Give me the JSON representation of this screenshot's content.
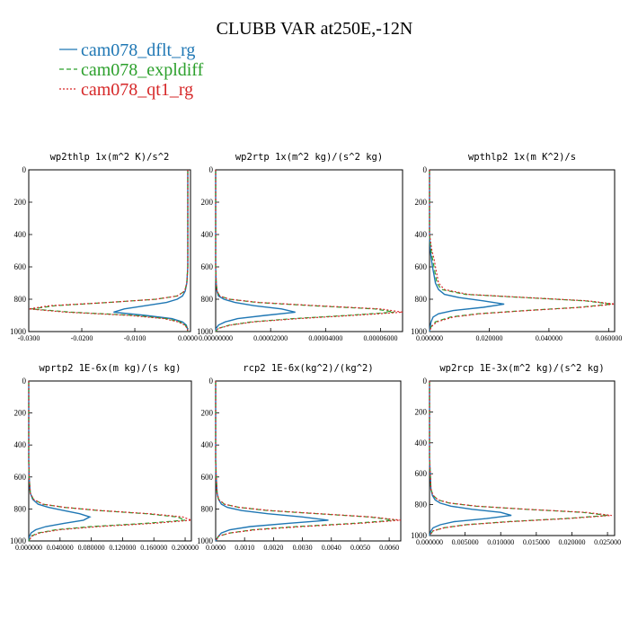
{
  "title": "CLUBB VAR at250E,-12N",
  "legend": [
    {
      "label": "cam078_dflt_rg",
      "color": "#1f77b4",
      "dash": "solid"
    },
    {
      "label": "cam078_expldiff",
      "color": "#2ca02c",
      "dash": "dashed"
    },
    {
      "label": "cam078_qt1_rg",
      "color": "#d62728",
      "dash": "dotted"
    }
  ],
  "chart_data": [
    {
      "type": "line",
      "title": "wp2thlp  1x(m^2 K)/s^2",
      "ylim": [
        1000,
        0
      ],
      "yticks": [
        "0",
        "200",
        "400",
        "600",
        "800",
        "1000"
      ],
      "xlim": [
        -0.03,
        0.0005
      ],
      "xticks": [
        {
          "v": -0.03,
          "label": "-0.0300"
        },
        {
          "v": -0.02,
          "label": "-0.0200"
        },
        {
          "v": -0.01,
          "label": "-0.0100"
        },
        {
          "v": 0.0,
          "label": "0.0000"
        }
      ],
      "y": [
        0,
        100,
        200,
        300,
        400,
        500,
        600,
        700,
        750,
        780,
        800,
        820,
        840,
        860,
        880,
        900,
        920,
        940,
        960,
        980,
        1000
      ],
      "series": [
        {
          "name": "cam078_dflt_rg",
          "values": [
            0,
            0,
            0,
            0,
            0,
            0,
            0,
            -0.0002,
            -0.0005,
            -0.001,
            -0.002,
            -0.004,
            -0.008,
            -0.012,
            -0.014,
            -0.008,
            -0.003,
            -0.001,
            -0.0003,
            -0.0001,
            0
          ]
        },
        {
          "name": "cam078_expldiff",
          "values": [
            0,
            0,
            0,
            0,
            0,
            0,
            0,
            -0.0002,
            -0.0006,
            -0.002,
            -0.006,
            -0.015,
            -0.025,
            -0.0295,
            -0.022,
            -0.01,
            -0.004,
            -0.0015,
            -0.0005,
            -0.0001,
            0
          ]
        },
        {
          "name": "cam078_qt1_rg",
          "values": [
            0,
            0,
            0,
            0,
            0,
            0,
            0,
            -0.0002,
            -0.0006,
            -0.002,
            -0.006,
            -0.015,
            -0.026,
            -0.03,
            -0.023,
            -0.011,
            -0.0045,
            -0.0018,
            -0.0006,
            -0.0001,
            0
          ]
        }
      ]
    },
    {
      "type": "line",
      "title": "wp2rtp  1x(m^2 kg)/(s^2 kg)",
      "ylim": [
        1000,
        0
      ],
      "yticks": [
        "0",
        "200",
        "400",
        "600",
        "800",
        "1000"
      ],
      "xlim": [
        0,
        6.8e-05
      ],
      "xticks": [
        {
          "v": 0,
          "label": "0.00000000"
        },
        {
          "v": 2e-05,
          "label": "0.00002000"
        },
        {
          "v": 4e-05,
          "label": "0.00004000"
        },
        {
          "v": 6e-05,
          "label": "0.00006000"
        }
      ],
      "y": [
        0,
        100,
        200,
        300,
        400,
        500,
        600,
        700,
        750,
        780,
        800,
        820,
        840,
        860,
        880,
        900,
        920,
        940,
        960,
        980,
        1000
      ],
      "series": [
        {
          "name": "cam078_dflt_rg",
          "values": [
            0,
            0,
            0,
            0,
            0,
            0,
            0,
            2e-07,
            5e-07,
            1e-06,
            3e-06,
            7e-06,
            1.4e-05,
            2.4e-05,
            2.9e-05,
            1.8e-05,
            8e-06,
            3.5e-06,
            1e-06,
            2e-07,
            0
          ]
        },
        {
          "name": "cam078_expldiff",
          "values": [
            0,
            0,
            0,
            0,
            0,
            0,
            0,
            2e-07,
            5e-07,
            1.5e-06,
            5e-06,
            1.5e-05,
            3.5e-05,
            5.8e-05,
            6.5e-05,
            4.8e-05,
            2.8e-05,
            1.3e-05,
            5e-06,
            1e-06,
            0
          ]
        },
        {
          "name": "cam078_qt1_rg",
          "values": [
            0,
            0,
            0,
            0,
            0,
            0,
            0,
            2e-07,
            5e-07,
            1.5e-06,
            5e-06,
            1.6e-05,
            3.7e-05,
            6e-05,
            6.8e-05,
            5e-05,
            3e-05,
            1.4e-05,
            5.5e-06,
            1e-06,
            0
          ]
        }
      ]
    },
    {
      "type": "line",
      "title": "wpthlp2  1x(m K^2)/s",
      "ylim": [
        1000,
        0
      ],
      "yticks": [
        "0",
        "200",
        "400",
        "600",
        "800",
        "1000"
      ],
      "xlim": [
        0,
        0.062
      ],
      "xticks": [
        {
          "v": 0,
          "label": "0.000000"
        },
        {
          "v": 0.02,
          "label": "0.020000"
        },
        {
          "v": 0.04,
          "label": "0.040000"
        },
        {
          "v": 0.06,
          "label": "0.060000"
        }
      ],
      "y": [
        0,
        100,
        200,
        300,
        400,
        500,
        550,
        600,
        650,
        700,
        740,
        770,
        790,
        810,
        830,
        850,
        870,
        890,
        910,
        940,
        970,
        1000
      ],
      "series": [
        {
          "name": "cam078_dflt_rg",
          "values": [
            0,
            0,
            0,
            0,
            0,
            0.0003,
            0.0006,
            0.001,
            0.0015,
            0.002,
            0.003,
            0.005,
            0.01,
            0.018,
            0.025,
            0.018,
            0.008,
            0.003,
            0.0012,
            0.0005,
            0.0002,
            0
          ]
        },
        {
          "name": "cam078_expldiff",
          "values": [
            0,
            0,
            0,
            0,
            0,
            0.0005,
            0.001,
            0.0015,
            0.002,
            0.0025,
            0.004,
            0.012,
            0.032,
            0.052,
            0.061,
            0.05,
            0.032,
            0.016,
            0.007,
            0.002,
            0.0005,
            0
          ]
        },
        {
          "name": "cam078_qt1_rg",
          "values": [
            0,
            0,
            0,
            0,
            0,
            0.0008,
            0.0015,
            0.002,
            0.0025,
            0.003,
            0.005,
            0.013,
            0.033,
            0.053,
            0.062,
            0.051,
            0.033,
            0.017,
            0.008,
            0.0025,
            0.0006,
            0
          ]
        }
      ]
    },
    {
      "type": "line",
      "title": "wprtp2  1E-6x(m kg)/(s kg)",
      "ylim": [
        1000,
        0
      ],
      "yticks": [
        "0",
        "200",
        "400",
        "600",
        "800",
        "1000"
      ],
      "xlim": [
        0,
        0.208
      ],
      "xticks": [
        {
          "v": 0,
          "label": "0.000000"
        },
        {
          "v": 0.04,
          "label": "0.040000"
        },
        {
          "v": 0.08,
          "label": "0.080000"
        },
        {
          "v": 0.12,
          "label": "0.120000"
        },
        {
          "v": 0.16,
          "label": "0.160000"
        },
        {
          "v": 0.2,
          "label": "0.200000"
        }
      ],
      "y": [
        0,
        100,
        200,
        300,
        400,
        500,
        600,
        700,
        740,
        770,
        790,
        810,
        830,
        850,
        870,
        890,
        910,
        930,
        950,
        970,
        1000
      ],
      "series": [
        {
          "name": "cam078_dflt_rg",
          "values": [
            0,
            0,
            0,
            0,
            0,
            0,
            0.0005,
            0.002,
            0.005,
            0.012,
            0.025,
            0.045,
            0.065,
            0.078,
            0.07,
            0.045,
            0.022,
            0.009,
            0.003,
            0.001,
            0
          ]
        },
        {
          "name": "cam078_expldiff",
          "values": [
            0,
            0,
            0,
            0,
            0,
            0,
            0.0005,
            0.002,
            0.006,
            0.018,
            0.045,
            0.09,
            0.15,
            0.19,
            0.2,
            0.15,
            0.08,
            0.035,
            0.012,
            0.003,
            0
          ]
        },
        {
          "name": "cam078_qt1_rg",
          "values": [
            0,
            0,
            0,
            0,
            0,
            0,
            0.0005,
            0.002,
            0.006,
            0.018,
            0.046,
            0.092,
            0.155,
            0.197,
            0.208,
            0.16,
            0.09,
            0.04,
            0.014,
            0.004,
            0
          ]
        }
      ]
    },
    {
      "type": "line",
      "title": "rcp2  1E-6x(kg^2)/(kg^2)",
      "ylim": [
        1000,
        0
      ],
      "yticks": [
        "0",
        "200",
        "400",
        "600",
        "800",
        "1000"
      ],
      "xlim": [
        0,
        0.0064
      ],
      "xticks": [
        {
          "v": 0,
          "label": "0.0000"
        },
        {
          "v": 0.001,
          "label": "0.0010"
        },
        {
          "v": 0.002,
          "label": "0.0020"
        },
        {
          "v": 0.003,
          "label": "0.0030"
        },
        {
          "v": 0.004,
          "label": "0.0040"
        },
        {
          "v": 0.005,
          "label": "0.0050"
        },
        {
          "v": 0.006,
          "label": "0.0060"
        }
      ],
      "y": [
        0,
        100,
        200,
        300,
        400,
        500,
        600,
        700,
        740,
        770,
        790,
        810,
        830,
        850,
        870,
        890,
        910,
        930,
        950,
        970,
        1000
      ],
      "series": [
        {
          "name": "cam078_dflt_rg",
          "values": [
            0,
            0,
            0,
            0,
            0,
            0,
            2e-05,
            5e-05,
            0.0001,
            0.0002,
            0.0004,
            0.0009,
            0.0018,
            0.003,
            0.0039,
            0.0025,
            0.0012,
            0.0005,
            0.0002,
            0.0001,
            0
          ]
        },
        {
          "name": "cam078_expldiff",
          "values": [
            0,
            0,
            0,
            0,
            0,
            0,
            2e-05,
            5e-05,
            0.0001,
            0.0003,
            0.0008,
            0.0018,
            0.0035,
            0.0053,
            0.0062,
            0.0048,
            0.0028,
            0.0013,
            0.0005,
            0.0001,
            0
          ]
        },
        {
          "name": "cam078_qt1_rg",
          "values": [
            0,
            0,
            0,
            0,
            0,
            0,
            2e-05,
            5e-05,
            0.0001,
            0.0003,
            0.0008,
            0.0019,
            0.0036,
            0.0054,
            0.0064,
            0.005,
            0.003,
            0.0014,
            0.0005,
            0.0001,
            0
          ]
        }
      ]
    },
    {
      "type": "line",
      "title": "wp2rcp  1E-3x(m^2 kg)/(s^2 kg)",
      "ylim": [
        1000,
        0
      ],
      "yticks": [
        "0",
        "200",
        "400",
        "600",
        "800",
        "1000"
      ],
      "xlim": [
        0,
        0.026
      ],
      "xticks": [
        {
          "v": 0,
          "label": "0.000000"
        },
        {
          "v": 0.005,
          "label": "0.005000"
        },
        {
          "v": 0.01,
          "label": "0.010000"
        },
        {
          "v": 0.015,
          "label": "0.015000"
        },
        {
          "v": 0.02,
          "label": "0.020000"
        },
        {
          "v": 0.025,
          "label": "0.025000"
        }
      ],
      "y": [
        0,
        100,
        200,
        300,
        400,
        500,
        600,
        700,
        740,
        770,
        790,
        810,
        830,
        850,
        870,
        890,
        910,
        930,
        950,
        970,
        1000
      ],
      "series": [
        {
          "name": "cam078_dflt_rg",
          "values": [
            0,
            0,
            0,
            0,
            0,
            0,
            0.0001,
            0.0002,
            0.0004,
            0.0008,
            0.0015,
            0.003,
            0.006,
            0.01,
            0.0115,
            0.008,
            0.0035,
            0.0015,
            0.0005,
            0.0002,
            0
          ]
        },
        {
          "name": "cam078_expldiff",
          "values": [
            0,
            0,
            0,
            0,
            0,
            0,
            0.0001,
            0.0002,
            0.0005,
            0.0012,
            0.0028,
            0.0065,
            0.0135,
            0.0215,
            0.025,
            0.019,
            0.011,
            0.005,
            0.002,
            0.0005,
            0
          ]
        },
        {
          "name": "cam078_qt1_rg",
          "values": [
            0,
            0,
            0,
            0,
            0,
            0,
            0.0001,
            0.0002,
            0.0005,
            0.0012,
            0.0029,
            0.0067,
            0.0138,
            0.022,
            0.0256,
            0.0195,
            0.0115,
            0.0052,
            0.0021,
            0.0005,
            0
          ]
        }
      ]
    }
  ]
}
